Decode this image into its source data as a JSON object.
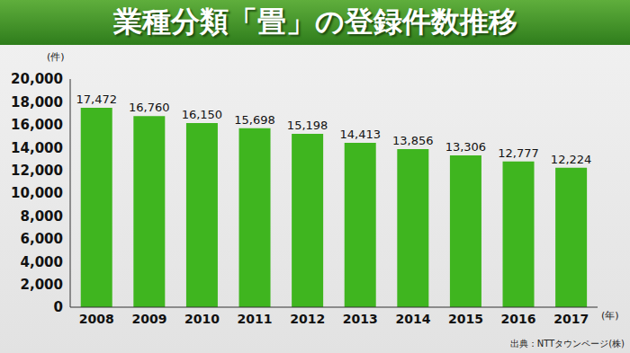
{
  "chart_data": {
    "type": "bar",
    "title": "業種分類「畳」の登録件数推移",
    "y_label": "(件)",
    "x_label": "(年)",
    "annotations": [
      "出典：NTTタウンページ(株)"
    ],
    "categories": [
      "2008",
      "2009",
      "2010",
      "2011",
      "2012",
      "2013",
      "2014",
      "2015",
      "2016",
      "2017"
    ],
    "values": [
      17472,
      16760,
      16150,
      15698,
      15198,
      14413,
      13856,
      13306,
      12777,
      12224
    ],
    "value_labels": [
      "17,472",
      "16,760",
      "16,150",
      "15,698",
      "15,198",
      "14,413",
      "13,856",
      "13,306",
      "12,777",
      "12,224"
    ],
    "data_labels": true,
    "color": "#3fb51f",
    "ylim": [
      0,
      20000
    ],
    "yticks": [
      0,
      {
        "value": 2000,
        "label": "2,000"
      },
      {
        "value": 4000,
        "label": "4,000"
      },
      {
        "value": 6000,
        "label": "6,000"
      },
      {
        "value": 8000,
        "label": "8,000"
      },
      {
        "value": 10000,
        "label": "10,000"
      },
      {
        "value": 12000,
        "label": "12,000"
      },
      {
        "value": 14000,
        "label": "14,000"
      },
      {
        "value": 16000,
        "label": "16,000"
      },
      {
        "value": 18000,
        "label": "18,000"
      },
      {
        "value": 20000,
        "label": "20,000"
      }
    ],
    "grid": false
  }
}
